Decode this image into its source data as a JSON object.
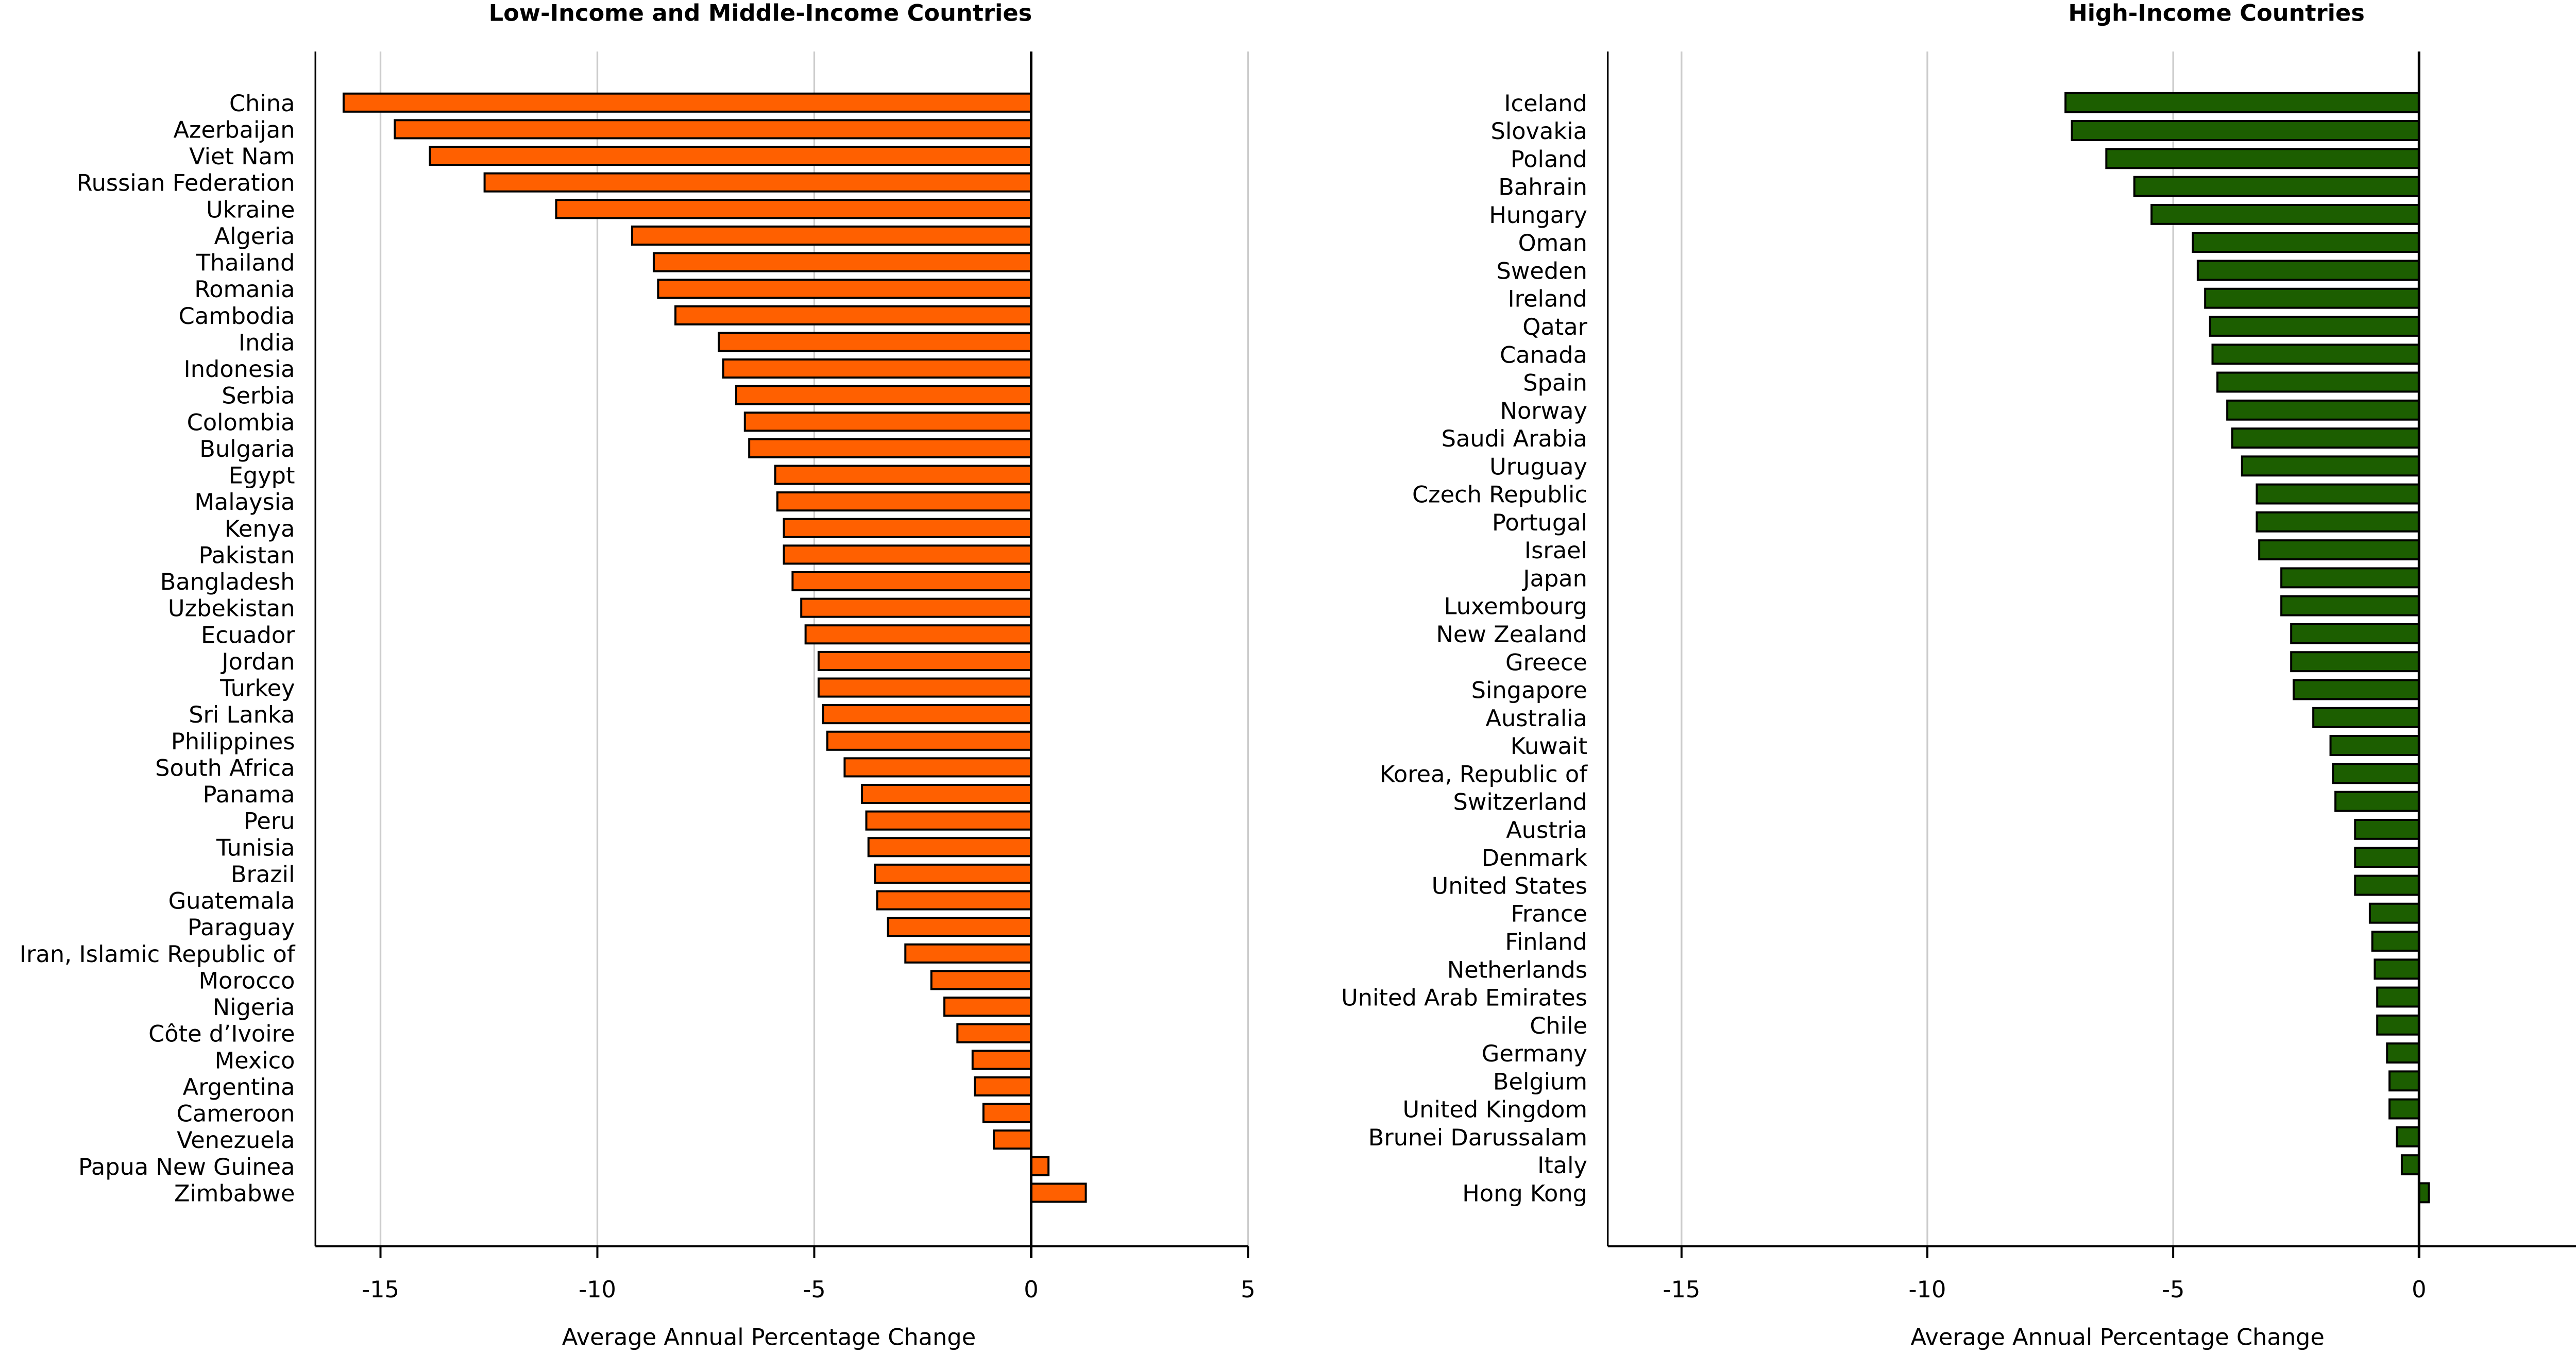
{
  "chart_data": [
    {
      "type": "bar",
      "orientation": "horizontal",
      "title": "Low-Income and Middle-Income Countries",
      "xlabel": "Average Annual Percentage Change",
      "xlim": [
        -16.5,
        5
      ],
      "xticks": [
        -15,
        -10,
        -5,
        0,
        5
      ],
      "grid": true,
      "bar_color": "#ff6000",
      "categories": [
        "China",
        "Azerbaijan",
        "Viet Nam",
        "Russian Federation",
        "Ukraine",
        "Algeria",
        "Thailand",
        "Romania",
        "Cambodia",
        "India",
        "Indonesia",
        "Serbia",
        "Colombia",
        "Bulgaria",
        "Egypt",
        "Malaysia",
        "Kenya",
        "Pakistan",
        "Bangladesh",
        "Uzbekistan",
        "Ecuador",
        "Jordan",
        "Turkey",
        "Sri Lanka",
        "Philippines",
        "South Africa",
        "Panama",
        "Peru",
        "Tunisia",
        "Brazil",
        "Guatemala",
        "Paraguay",
        "Iran, Islamic Republic of",
        "Morocco",
        "Nigeria",
        "Côte d’Ivoire",
        "Mexico",
        "Argentina",
        "Cameroon",
        "Venezuela",
        "Papua New Guinea",
        "Zimbabwe"
      ],
      "values": [
        -15.85,
        -14.67,
        -13.86,
        -12.6,
        -10.95,
        -9.2,
        -8.7,
        -8.6,
        -8.2,
        -7.2,
        -7.1,
        -6.8,
        -6.6,
        -6.5,
        -5.9,
        -5.85,
        -5.7,
        -5.7,
        -5.5,
        -5.3,
        -5.2,
        -4.9,
        -4.9,
        -4.8,
        -4.7,
        -4.3,
        -3.9,
        -3.8,
        -3.75,
        -3.6,
        -3.55,
        -3.3,
        -2.9,
        -2.3,
        -2.0,
        -1.7,
        -1.35,
        -1.3,
        -1.1,
        -0.86,
        0.4,
        1.26
      ]
    },
    {
      "type": "bar",
      "orientation": "horizontal",
      "title": "High-Income Countries",
      "xlabel": "Average Annual Percentage Change",
      "xlim": [
        -16.5,
        5
      ],
      "xticks": [
        -15,
        -10,
        -5,
        0,
        5
      ],
      "grid": true,
      "bar_color": "#1c5e00",
      "categories": [
        "Iceland",
        "Slovakia",
        "Poland",
        "Bahrain",
        "Hungary",
        "Oman",
        "Sweden",
        "Ireland",
        "Qatar",
        "Canada",
        "Spain",
        "Norway",
        "Saudi Arabia",
        "Uruguay",
        "Czech Republic",
        "Portugal",
        "Israel",
        "Japan",
        "Luxembourg",
        "New Zealand",
        "Greece",
        "Singapore",
        "Australia",
        "Kuwait",
        "Korea, Republic of",
        "Switzerland",
        "Austria",
        "Denmark",
        "United States",
        "France",
        "Finland",
        "Netherlands",
        "United Arab Emirates",
        "Chile",
        "Germany",
        "Belgium",
        "United Kingdom",
        "Brunei Darussalam",
        "Italy",
        "Hong Kong"
      ],
      "values": [
        -7.19,
        -7.06,
        -6.36,
        -5.79,
        -5.44,
        -4.6,
        -4.5,
        -4.35,
        -4.25,
        -4.2,
        -4.1,
        -3.9,
        -3.8,
        -3.6,
        -3.3,
        -3.3,
        -3.25,
        -2.8,
        -2.8,
        -2.6,
        -2.6,
        -2.55,
        -2.15,
        -1.8,
        -1.75,
        -1.7,
        -1.3,
        -1.3,
        -1.3,
        -1.0,
        -0.95,
        -0.9,
        -0.85,
        -0.85,
        -0.65,
        -0.6,
        -0.6,
        -0.45,
        -0.35,
        0.2
      ]
    }
  ]
}
